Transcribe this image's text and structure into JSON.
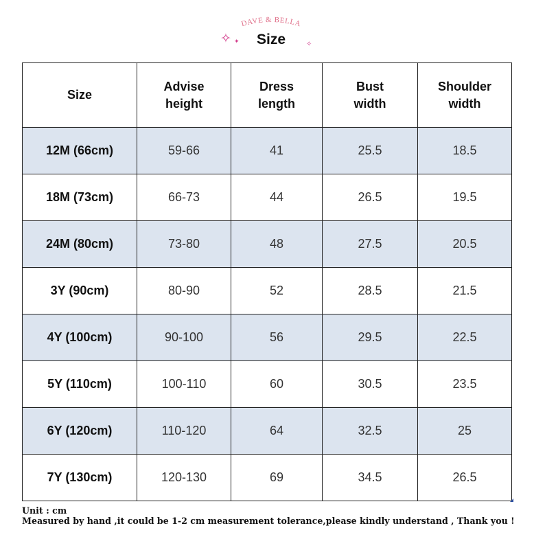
{
  "header": {
    "brand": "DAVE & BELLA",
    "title": "Size",
    "brand_color": "#e0708a",
    "sparkle_color": "#d23a8a"
  },
  "table": {
    "columns": [
      "Size",
      "Advise height",
      "Dress length",
      "Bust width",
      "Shoulder width"
    ],
    "column_lines": [
      [
        "Size"
      ],
      [
        "Advise",
        "height"
      ],
      [
        "Dress",
        "length"
      ],
      [
        "Bust",
        "width"
      ],
      [
        "Shoulder",
        "width"
      ]
    ],
    "rows": [
      [
        "12M (66cm)",
        "59-66",
        "41",
        "25.5",
        "18.5"
      ],
      [
        "18M (73cm)",
        "66-73",
        "44",
        "26.5",
        "19.5"
      ],
      [
        "24M (80cm)",
        "73-80",
        "48",
        "27.5",
        "20.5"
      ],
      [
        "3Y (90cm)",
        "80-90",
        "52",
        "28.5",
        "21.5"
      ],
      [
        "4Y (100cm)",
        "90-100",
        "56",
        "29.5",
        "22.5"
      ],
      [
        "5Y (110cm)",
        "100-110",
        "60",
        "30.5",
        "23.5"
      ],
      [
        "6Y (120cm)",
        "110-120",
        "64",
        "32.5",
        "25"
      ],
      [
        "7Y (130cm)",
        "120-130",
        "69",
        "34.5",
        "26.5"
      ]
    ],
    "shaded_color": "#dce4ef",
    "border_color": "#222222"
  },
  "notes": {
    "unit": "Unit : cm",
    "disclaimer": "Measured by hand ,it could be 1-2 cm measurement tolerance,please kindly understand , Thank you !"
  }
}
